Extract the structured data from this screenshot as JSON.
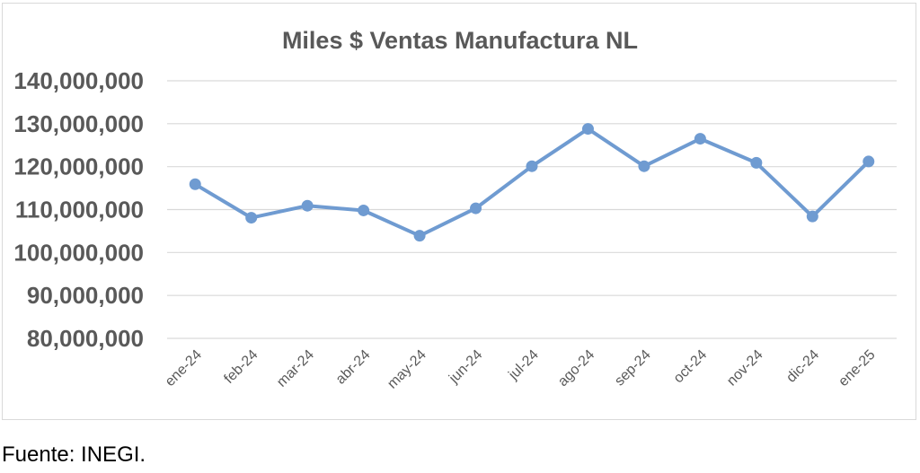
{
  "chart_data": {
    "type": "line",
    "title": "Miles $ Ventas Manufactura NL",
    "xlabel": "",
    "ylabel": "",
    "categories": [
      "ene-24",
      "feb-24",
      "mar-24",
      "abr-24",
      "may-24",
      "jun-24",
      "jul-24",
      "ago-24",
      "sep-24",
      "oct-24",
      "nov-24",
      "dic-24",
      "ene-25"
    ],
    "series": [
      {
        "values": [
          115900000,
          108100000,
          110900000,
          109800000,
          103900000,
          110300000,
          120100000,
          128800000,
          120100000,
          126500000,
          120900000,
          108400000,
          121200000
        ]
      }
    ],
    "ylim": [
      80000000,
      140000000
    ],
    "yticks": [
      140000000,
      130000000,
      120000000,
      110000000,
      100000000,
      90000000,
      80000000
    ],
    "ytick_labels": [
      "140,000,000",
      "130,000,000",
      "120,000,000",
      "110,000,000",
      "100,000,000",
      "90,000,000",
      "80,000,000"
    ],
    "grid": true,
    "legend": "none",
    "colors": {
      "line": "#6f9bd1",
      "grid": "#d9d9d9",
      "text": "#595959"
    }
  },
  "footer": {
    "source": "Fuente: INEGI."
  }
}
